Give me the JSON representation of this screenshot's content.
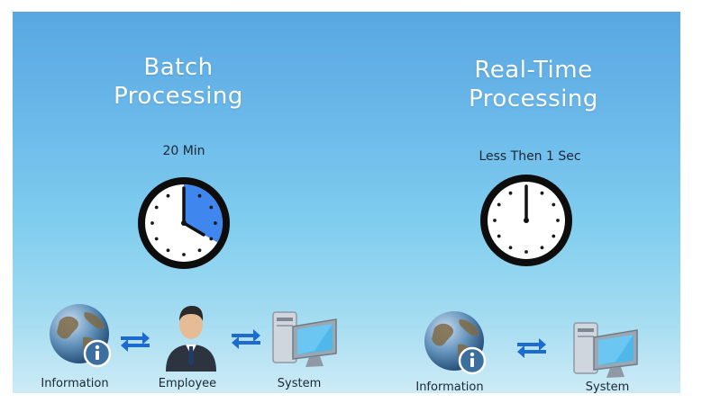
{
  "batch": {
    "title": "Batch\nProcessing",
    "time_label": "20 Min",
    "clock_elapsed_minutes": 20,
    "nodes": {
      "information": "Information",
      "employee": "Employee",
      "system": "System"
    }
  },
  "realtime": {
    "title": "Real-Time\nProcessing",
    "time_label": "Less Then 1 Sec",
    "clock_elapsed_minutes": 0,
    "nodes": {
      "information": "Information",
      "system": "System"
    }
  },
  "colors": {
    "clock_fill": "#3f86ee",
    "clock_ring": "#0d0d0d",
    "arrow": "#1d6bd0"
  }
}
